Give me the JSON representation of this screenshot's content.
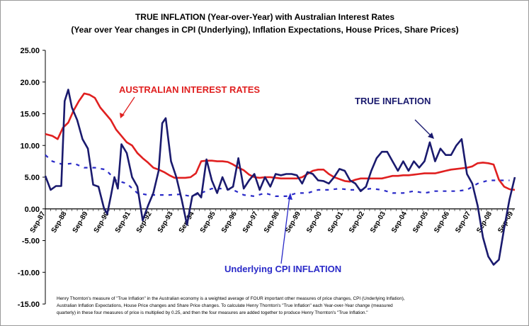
{
  "chart_data": {
    "type": "line",
    "title": "TRUE INFLATION (Year-over-Year) with Australian Interest Rates",
    "subtitle": "(Year over Year changes in CPI (Underlying), Inflation Expectations, House Prices, Share Prices)",
    "ylim": [
      -15,
      25
    ],
    "yticks": [
      "25.00",
      "20.00",
      "15.00",
      "10.00",
      "5.00",
      "0.00",
      "-5.00",
      "-10.00",
      "-15.00"
    ],
    "ytick_values": [
      25,
      20,
      15,
      10,
      5,
      0,
      -5,
      -10,
      -15
    ],
    "xlim": [
      1987.67,
      2009.75
    ],
    "categories": [
      "Sep-87",
      "Sep-88",
      "Sep-89",
      "Sep-90",
      "Sep-91",
      "Sep-92",
      "Sep-93",
      "Sep-94",
      "Sep-95",
      "Sep-96",
      "Sep-97",
      "Sep-98",
      "Sep-99",
      "Sep-00",
      "Sep-01",
      "Sep-02",
      "Sep-03",
      "Sep-04",
      "Sep-05",
      "Sep-06",
      "Sep-07",
      "Sep-08",
      "Sep-09"
    ],
    "category_x": [
      1987.67,
      1988.67,
      1989.67,
      1990.67,
      1991.67,
      1992.67,
      1993.67,
      1994.67,
      1995.67,
      1996.67,
      1997.67,
      1998.67,
      1999.67,
      2000.67,
      2001.67,
      2002.67,
      2003.67,
      2004.67,
      2005.67,
      2006.67,
      2007.67,
      2008.67,
      2009.67
    ],
    "series": [
      {
        "name": "Australian Interest Rates",
        "color": "#e02020",
        "style": "solid",
        "points": [
          [
            1987.67,
            11.8
          ],
          [
            1988.0,
            11.5
          ],
          [
            1988.25,
            11.0
          ],
          [
            1988.5,
            12.8
          ],
          [
            1988.75,
            13.6
          ],
          [
            1989.0,
            15.5
          ],
          [
            1989.25,
            17.0
          ],
          [
            1989.5,
            18.2
          ],
          [
            1989.75,
            18.0
          ],
          [
            1990.0,
            17.5
          ],
          [
            1990.25,
            16.0
          ],
          [
            1990.5,
            15.0
          ],
          [
            1990.75,
            14.0
          ],
          [
            1991.0,
            12.5
          ],
          [
            1991.25,
            11.5
          ],
          [
            1991.5,
            10.5
          ],
          [
            1991.75,
            10.0
          ],
          [
            1992.0,
            8.8
          ],
          [
            1992.25,
            8.0
          ],
          [
            1992.5,
            7.3
          ],
          [
            1992.75,
            6.5
          ],
          [
            1993.0,
            6.2
          ],
          [
            1993.25,
            5.8
          ],
          [
            1993.5,
            5.3
          ],
          [
            1993.75,
            4.9
          ],
          [
            1994.0,
            4.9
          ],
          [
            1994.25,
            4.9
          ],
          [
            1994.5,
            5.0
          ],
          [
            1994.75,
            5.6
          ],
          [
            1995.0,
            7.5
          ],
          [
            1995.25,
            7.6
          ],
          [
            1995.5,
            7.6
          ],
          [
            1995.75,
            7.5
          ],
          [
            1996.0,
            7.5
          ],
          [
            1996.25,
            7.4
          ],
          [
            1996.5,
            7.0
          ],
          [
            1996.75,
            6.5
          ],
          [
            1997.0,
            6.1
          ],
          [
            1997.25,
            5.4
          ],
          [
            1997.5,
            5.0
          ],
          [
            1997.75,
            4.9
          ],
          [
            1998.0,
            5.0
          ],
          [
            1998.25,
            5.0
          ],
          [
            1998.5,
            4.9
          ],
          [
            1998.75,
            4.8
          ],
          [
            1999.0,
            4.8
          ],
          [
            1999.25,
            4.8
          ],
          [
            1999.5,
            4.8
          ],
          [
            1999.75,
            5.0
          ],
          [
            2000.0,
            5.5
          ],
          [
            2000.25,
            6.0
          ],
          [
            2000.5,
            6.2
          ],
          [
            2000.75,
            6.2
          ],
          [
            2001.0,
            5.5
          ],
          [
            2001.25,
            5.0
          ],
          [
            2001.5,
            4.7
          ],
          [
            2001.75,
            4.4
          ],
          [
            2002.0,
            4.3
          ],
          [
            2002.25,
            4.6
          ],
          [
            2002.5,
            4.8
          ],
          [
            2002.75,
            4.8
          ],
          [
            2003.0,
            4.8
          ],
          [
            2003.25,
            4.8
          ],
          [
            2003.5,
            4.8
          ],
          [
            2003.75,
            5.0
          ],
          [
            2004.0,
            5.2
          ],
          [
            2004.25,
            5.2
          ],
          [
            2004.5,
            5.3
          ],
          [
            2004.75,
            5.3
          ],
          [
            2005.0,
            5.4
          ],
          [
            2005.25,
            5.5
          ],
          [
            2005.5,
            5.6
          ],
          [
            2005.75,
            5.6
          ],
          [
            2006.0,
            5.6
          ],
          [
            2006.25,
            5.8
          ],
          [
            2006.5,
            6.0
          ],
          [
            2006.75,
            6.2
          ],
          [
            2007.0,
            6.3
          ],
          [
            2007.25,
            6.4
          ],
          [
            2007.5,
            6.5
          ],
          [
            2007.75,
            6.7
          ],
          [
            2008.0,
            7.2
          ],
          [
            2008.25,
            7.3
          ],
          [
            2008.5,
            7.2
          ],
          [
            2008.75,
            7.0
          ],
          [
            2009.0,
            4.6
          ],
          [
            2009.25,
            3.5
          ],
          [
            2009.5,
            3.1
          ],
          [
            2009.75,
            3.0
          ]
        ]
      },
      {
        "name": "True Inflation",
        "color": "#1a1a6e",
        "style": "solid",
        "points": [
          [
            1987.67,
            5.2
          ],
          [
            1987.92,
            3.0
          ],
          [
            1988.17,
            3.6
          ],
          [
            1988.42,
            3.6
          ],
          [
            1988.58,
            17.0
          ],
          [
            1988.75,
            18.8
          ],
          [
            1988.92,
            16.0
          ],
          [
            1989.17,
            14.0
          ],
          [
            1989.42,
            11.0
          ],
          [
            1989.67,
            9.5
          ],
          [
            1989.92,
            3.8
          ],
          [
            1990.17,
            3.5
          ],
          [
            1990.42,
            0.2
          ],
          [
            1990.58,
            -0.8
          ],
          [
            1990.75,
            2.0
          ],
          [
            1990.92,
            5.0
          ],
          [
            1991.08,
            3.2
          ],
          [
            1991.25,
            10.2
          ],
          [
            1991.5,
            8.8
          ],
          [
            1991.75,
            5.0
          ],
          [
            1992.0,
            3.5
          ],
          [
            1992.25,
            -1.8
          ],
          [
            1992.5,
            0.5
          ],
          [
            1992.75,
            2.5
          ],
          [
            1993.0,
            6.0
          ],
          [
            1993.17,
            13.5
          ],
          [
            1993.33,
            14.3
          ],
          [
            1993.58,
            7.5
          ],
          [
            1993.83,
            5.0
          ],
          [
            1994.08,
            1.5
          ],
          [
            1994.33,
            -2.5
          ],
          [
            1994.58,
            2.0
          ],
          [
            1994.83,
            2.5
          ],
          [
            1995.0,
            1.8
          ],
          [
            1995.25,
            7.8
          ],
          [
            1995.5,
            4.5
          ],
          [
            1995.75,
            2.5
          ],
          [
            1996.0,
            5.0
          ],
          [
            1996.25,
            3.0
          ],
          [
            1996.5,
            3.5
          ],
          [
            1996.75,
            8.0
          ],
          [
            1997.0,
            3.2
          ],
          [
            1997.25,
            4.5
          ],
          [
            1997.5,
            5.5
          ],
          [
            1997.75,
            3.0
          ],
          [
            1998.0,
            5.0
          ],
          [
            1998.25,
            3.5
          ],
          [
            1998.5,
            5.5
          ],
          [
            1998.75,
            5.3
          ],
          [
            1999.0,
            5.5
          ],
          [
            1999.25,
            5.5
          ],
          [
            1999.5,
            5.3
          ],
          [
            1999.75,
            4.0
          ],
          [
            2000.0,
            5.8
          ],
          [
            2000.25,
            5.5
          ],
          [
            2000.5,
            4.5
          ],
          [
            2000.75,
            4.4
          ],
          [
            2001.0,
            4.0
          ],
          [
            2001.25,
            5.0
          ],
          [
            2001.5,
            6.3
          ],
          [
            2001.75,
            6.0
          ],
          [
            2002.0,
            4.5
          ],
          [
            2002.25,
            4.0
          ],
          [
            2002.5,
            2.8
          ],
          [
            2002.75,
            3.5
          ],
          [
            2003.0,
            6.0
          ],
          [
            2003.25,
            8.0
          ],
          [
            2003.5,
            9.0
          ],
          [
            2003.75,
            9.0
          ],
          [
            2004.0,
            7.5
          ],
          [
            2004.25,
            6.0
          ],
          [
            2004.5,
            7.5
          ],
          [
            2004.75,
            6.0
          ],
          [
            2005.0,
            7.5
          ],
          [
            2005.25,
            6.5
          ],
          [
            2005.5,
            7.5
          ],
          [
            2005.75,
            10.5
          ],
          [
            2006.0,
            7.5
          ],
          [
            2006.25,
            9.5
          ],
          [
            2006.5,
            8.5
          ],
          [
            2006.75,
            8.5
          ],
          [
            2007.0,
            10.0
          ],
          [
            2007.25,
            11.0
          ],
          [
            2007.5,
            5.5
          ],
          [
            2007.75,
            4.0
          ],
          [
            2008.0,
            0.5
          ],
          [
            2008.25,
            -4.5
          ],
          [
            2008.5,
            -7.5
          ],
          [
            2008.75,
            -8.8
          ],
          [
            2009.0,
            -8.0
          ],
          [
            2009.25,
            -3.0
          ],
          [
            2009.5,
            1.5
          ],
          [
            2009.75,
            5.0
          ]
        ]
      },
      {
        "name": "Underlying CPI Inflation",
        "color": "#2a2ac8",
        "style": "dashed",
        "points": [
          [
            1987.67,
            8.5
          ],
          [
            1988.0,
            7.5
          ],
          [
            1988.5,
            7.0
          ],
          [
            1989.0,
            7.2
          ],
          [
            1989.5,
            6.5
          ],
          [
            1990.0,
            6.5
          ],
          [
            1990.5,
            6.2
          ],
          [
            1991.0,
            4.5
          ],
          [
            1991.5,
            4.0
          ],
          [
            1992.0,
            2.5
          ],
          [
            1992.5,
            2.2
          ],
          [
            1993.0,
            2.2
          ],
          [
            1993.5,
            2.2
          ],
          [
            1994.0,
            2.3
          ],
          [
            1994.5,
            2.0
          ],
          [
            1995.0,
            2.5
          ],
          [
            1995.5,
            3.2
          ],
          [
            1996.0,
            3.2
          ],
          [
            1996.5,
            3.0
          ],
          [
            1997.0,
            2.2
          ],
          [
            1997.5,
            2.0
          ],
          [
            1998.0,
            2.5
          ],
          [
            1998.5,
            2.0
          ],
          [
            1999.0,
            2.0
          ],
          [
            1999.5,
            2.5
          ],
          [
            2000.0,
            2.5
          ],
          [
            2000.5,
            3.0
          ],
          [
            2001.0,
            3.0
          ],
          [
            2001.5,
            3.2
          ],
          [
            2002.0,
            3.0
          ],
          [
            2002.5,
            3.0
          ],
          [
            2003.0,
            3.2
          ],
          [
            2003.5,
            3.0
          ],
          [
            2004.0,
            2.5
          ],
          [
            2004.5,
            2.5
          ],
          [
            2005.0,
            2.8
          ],
          [
            2005.5,
            2.5
          ],
          [
            2006.0,
            2.8
          ],
          [
            2006.5,
            2.8
          ],
          [
            2007.0,
            2.8
          ],
          [
            2007.5,
            3.0
          ],
          [
            2008.0,
            4.0
          ],
          [
            2008.5,
            4.5
          ],
          [
            2009.0,
            4.5
          ],
          [
            2009.5,
            4.5
          ]
        ]
      }
    ],
    "annotations": [
      {
        "text": "AUSTRALIAN INTEREST RATES",
        "color": "#e02020"
      },
      {
        "text": "TRUE INFLATION",
        "color": "#1a1a6e"
      },
      {
        "text": "Underlying CPI  INFLATION",
        "color": "#2a2ac8"
      }
    ],
    "footnote": [
      "Henry Thornton's measure of \"True Inflation\" in the Australian economy is a weighted average of FOUR important other measures of price changes, CPI (Underlying Inflation),",
      "Australian Inflation Expectations, House Price changes and Share Price changes. To calculate Henry Thornton's \"True Inflation\" each Year-over-Year change (measured",
      "quarterly) in these four measures of price is multiplied by 0.25, and then the four measures are added together to produce Henry Thornton's \"True Inflation.\""
    ]
  }
}
